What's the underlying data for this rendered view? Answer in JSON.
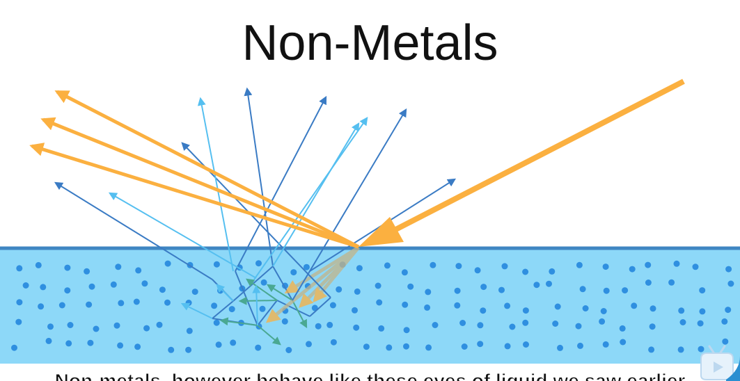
{
  "slide": {
    "title": "Non-Metals",
    "subtitle_caption": "Non-metals, however behave like these eyes of liquid we saw earlier"
  },
  "diagram": {
    "colors": {
      "medium_fill": "#8dd8f8",
      "surface_line": "#3f86c2",
      "particle": "#2f8fe0",
      "incident_ray": "#fbb040",
      "reflected_ray": "#fbb040",
      "scatter_dark": "#3a7bc4",
      "scatter_light": "#55bff0",
      "internal_scatter": "#4aa892"
    },
    "icons": {
      "player_logo": "bilibili-tv-icon"
    }
  }
}
